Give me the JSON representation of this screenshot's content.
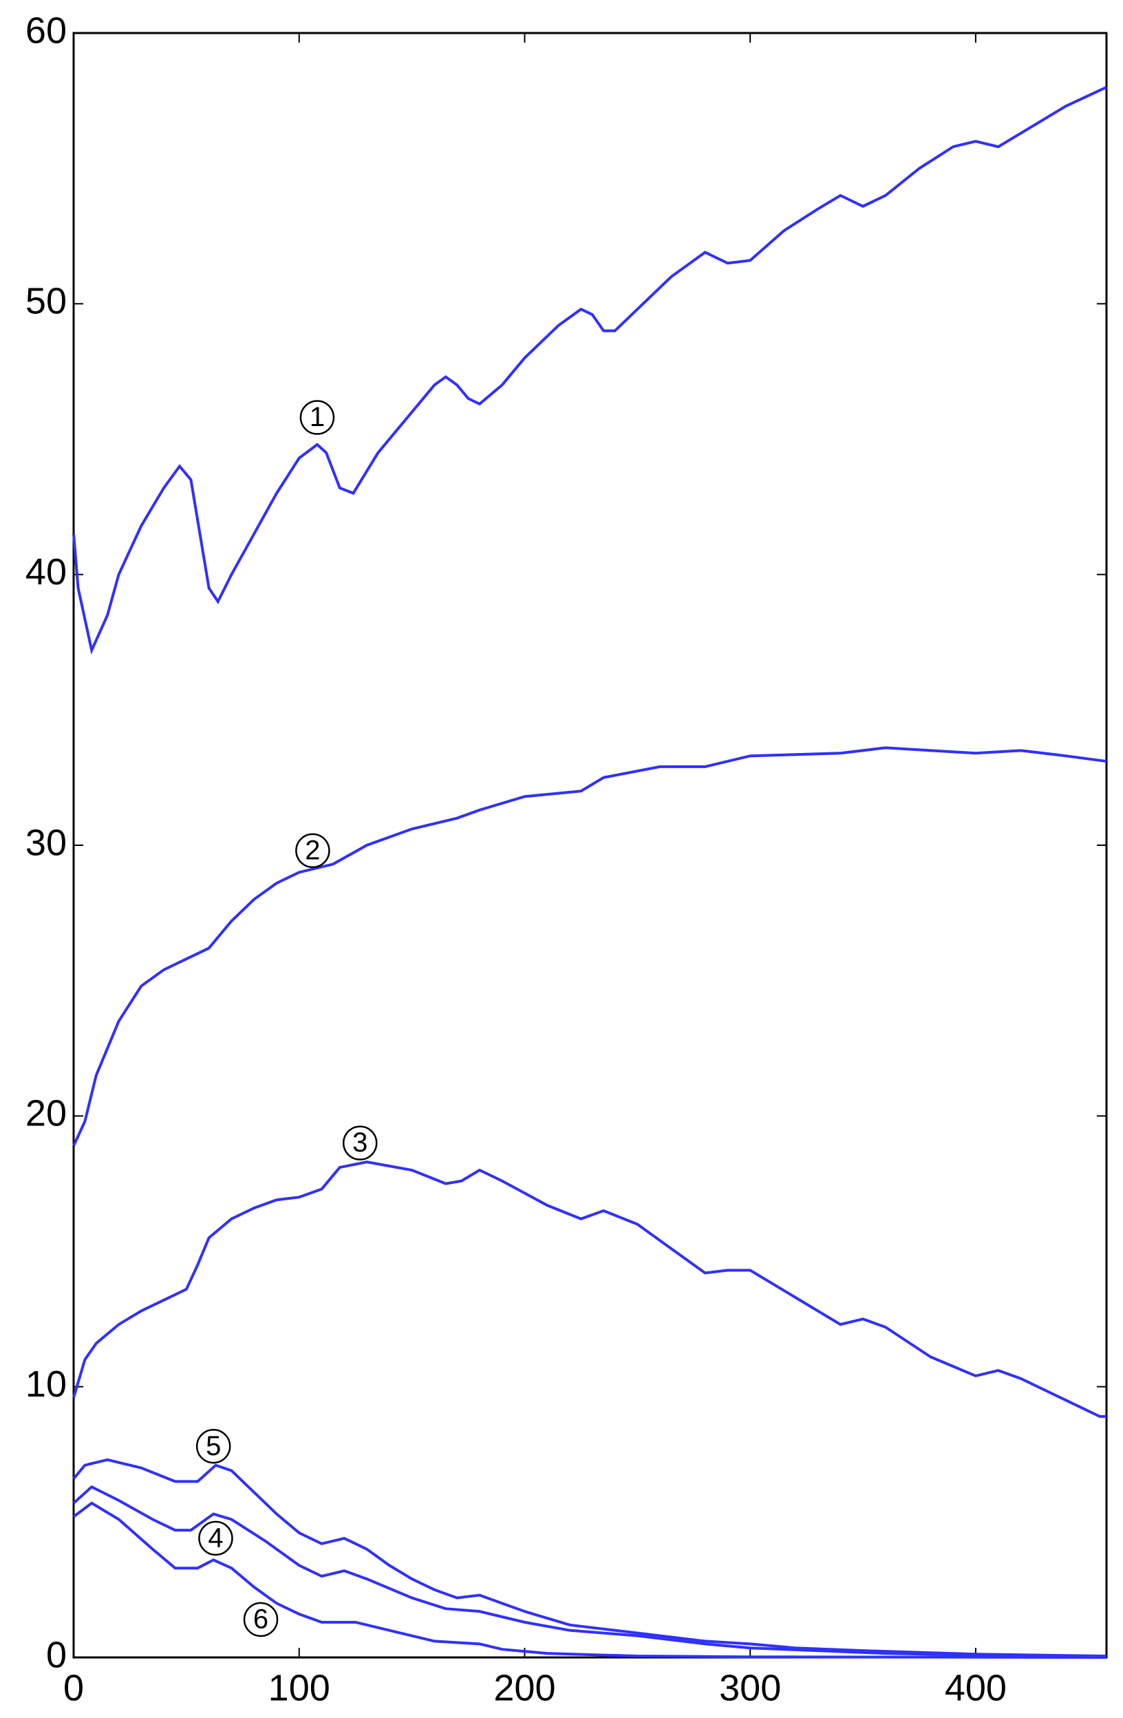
{
  "chart_data": {
    "type": "line",
    "xlim": [
      0,
      458
    ],
    "ylim": [
      0,
      60
    ],
    "xticks": [
      0,
      100,
      200,
      300,
      400
    ],
    "yticks": [
      0,
      10,
      20,
      30,
      40,
      50,
      60
    ],
    "series": [
      {
        "name": "1",
        "color": "#3030ff",
        "x": [
          0,
          2,
          8,
          15,
          20,
          30,
          40,
          47,
          52,
          56,
          60,
          64,
          70,
          80,
          90,
          100,
          108,
          112,
          118,
          124,
          135,
          150,
          160,
          165,
          170,
          175,
          180,
          190,
          200,
          215,
          225,
          230,
          235,
          240,
          250,
          265,
          280,
          290,
          300,
          315,
          330,
          340,
          345,
          350,
          360,
          375,
          390,
          400,
          410,
          420,
          440,
          458
        ],
        "values": [
          41.5,
          39.5,
          37.2,
          38.5,
          40,
          41.8,
          43.2,
          44,
          43.5,
          41.5,
          39.5,
          39,
          40,
          41.5,
          43,
          44.3,
          44.8,
          44.5,
          43.2,
          43,
          44.5,
          46,
          47,
          47.3,
          47,
          46.5,
          46.3,
          47,
          48,
          49.2,
          49.8,
          49.6,
          49,
          49,
          49.8,
          51,
          51.9,
          51.5,
          51.6,
          52.7,
          53.5,
          54,
          53.8,
          53.6,
          54,
          55,
          55.8,
          56,
          55.8,
          56.3,
          57.3,
          58
        ]
      },
      {
        "name": "2",
        "color": "#3030ff",
        "x": [
          0,
          5,
          10,
          20,
          30,
          40,
          50,
          60,
          70,
          80,
          90,
          100,
          115,
          130,
          150,
          170,
          180,
          200,
          225,
          235,
          260,
          280,
          300,
          340,
          360,
          400,
          420,
          440,
          458
        ],
        "values": [
          18.9,
          19.8,
          21.5,
          23.5,
          24.8,
          25.4,
          25.8,
          26.2,
          27.2,
          28,
          28.6,
          29,
          29.3,
          30,
          30.6,
          31,
          31.3,
          31.8,
          32,
          32.5,
          32.9,
          32.9,
          33.3,
          33.4,
          33.6,
          33.4,
          33.5,
          33.3,
          33.1
        ]
      },
      {
        "name": "3",
        "color": "#3030ff",
        "x": [
          0,
          5,
          10,
          20,
          30,
          40,
          50,
          55,
          60,
          70,
          80,
          90,
          100,
          110,
          118,
          130,
          150,
          165,
          172,
          180,
          190,
          210,
          225,
          235,
          250,
          265,
          280,
          290,
          300,
          320,
          340,
          350,
          360,
          380,
          400,
          410,
          420,
          440,
          455,
          458
        ],
        "values": [
          9.6,
          11,
          11.6,
          12.3,
          12.8,
          13.2,
          13.6,
          14.5,
          15.5,
          16.2,
          16.6,
          16.9,
          17,
          17.3,
          18.1,
          18.3,
          18,
          17.5,
          17.6,
          18,
          17.6,
          16.7,
          16.2,
          16.5,
          16,
          15.1,
          14.2,
          14.3,
          14.3,
          13.3,
          12.3,
          12.5,
          12.2,
          11.1,
          10.4,
          10.6,
          10.3,
          9.5,
          8.9,
          8.9
        ]
      },
      {
        "name": "4",
        "color": "#3030ff",
        "x": [
          0,
          8,
          20,
          35,
          45,
          52,
          62,
          70,
          85,
          100,
          110,
          120,
          130,
          150,
          165,
          180,
          200,
          220,
          250,
          280,
          300,
          330,
          360,
          400,
          458
        ],
        "values": [
          5.7,
          6.3,
          5.8,
          5.1,
          4.7,
          4.7,
          5.3,
          5.1,
          4.3,
          3.4,
          3,
          3.2,
          2.9,
          2.2,
          1.8,
          1.7,
          1.3,
          1,
          0.8,
          0.5,
          0.35,
          0.25,
          0.15,
          0.08,
          0.03
        ]
      },
      {
        "name": "5",
        "color": "#3030ff",
        "x": [
          0,
          5,
          15,
          30,
          45,
          55,
          63,
          70,
          80,
          90,
          100,
          110,
          120,
          130,
          140,
          150,
          160,
          170,
          180,
          190,
          200,
          220,
          240,
          260,
          280,
          300,
          320,
          350,
          400,
          458
        ],
        "values": [
          6.6,
          7.1,
          7.3,
          7,
          6.5,
          6.5,
          7.1,
          6.9,
          6.1,
          5.3,
          4.6,
          4.2,
          4.4,
          4,
          3.4,
          2.9,
          2.5,
          2.2,
          2.3,
          2,
          1.7,
          1.2,
          1,
          0.8,
          0.6,
          0.5,
          0.35,
          0.25,
          0.12,
          0.05
        ]
      },
      {
        "name": "6",
        "color": "#3030ff",
        "x": [
          0,
          8,
          20,
          35,
          45,
          55,
          62,
          70,
          80,
          90,
          100,
          110,
          125,
          140,
          160,
          180,
          190,
          210,
          250,
          300,
          458
        ],
        "values": [
          5.2,
          5.7,
          5.1,
          4,
          3.3,
          3.3,
          3.6,
          3.3,
          2.6,
          2,
          1.6,
          1.3,
          1.3,
          1,
          0.6,
          0.5,
          0.3,
          0.15,
          0.05,
          0.02,
          0
        ]
      }
    ]
  }
}
